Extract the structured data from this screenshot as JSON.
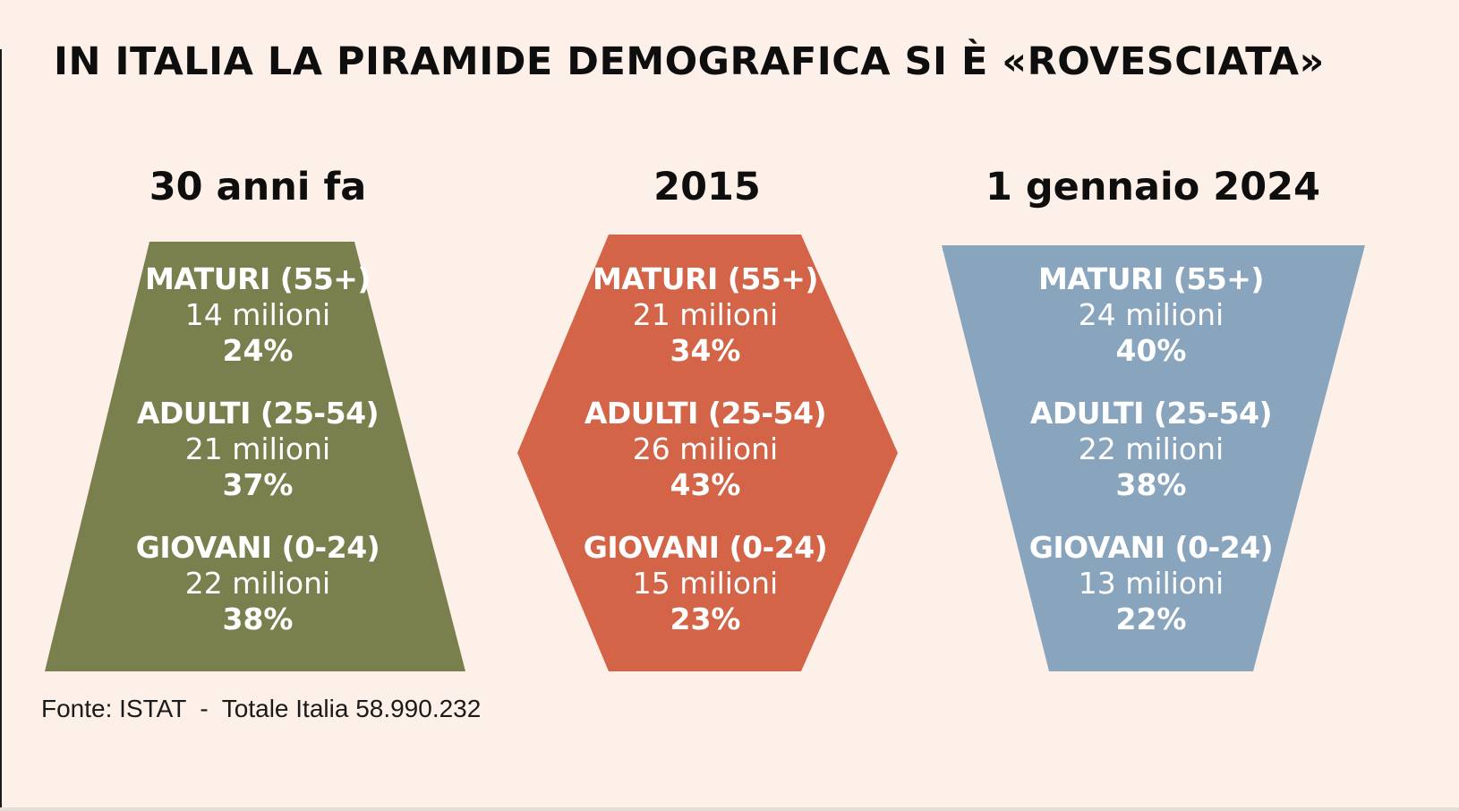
{
  "title": "IN ITALIA LA PIRAMIDE DEMOGRAFICA SI È «ROVESCIATA»",
  "source": "Fonte: ISTAT  -  Totale Italia 58.990.232",
  "colors": {
    "background": "#fdf0e8",
    "panel_1": "#7a7f4e",
    "panel_2": "#d46447",
    "panel_3": "#89a5be",
    "text_on_shape": "#ffffff"
  },
  "chart_data": {
    "type": "table",
    "panels": [
      {
        "heading": "30 anni fa",
        "shape": "trapezoid",
        "groups": [
          {
            "label": "MATURI (55+)",
            "count": "14 milioni",
            "percent": "24%"
          },
          {
            "label": "ADULTI (25-54)",
            "count": "21 milioni",
            "percent": "37%"
          },
          {
            "label": "GIOVANI (0-24)",
            "count": "22 milioni",
            "percent": "38%"
          }
        ]
      },
      {
        "heading": "2015",
        "shape": "hexagon",
        "groups": [
          {
            "label": "MATURI (55+)",
            "count": "21 milioni",
            "percent": "34%"
          },
          {
            "label": "ADULTI (25-54)",
            "count": "26 milioni",
            "percent": "43%"
          },
          {
            "label": "GIOVANI (0-24)",
            "count": "15 milioni",
            "percent": "23%"
          }
        ]
      },
      {
        "heading": "1 gennaio 2024",
        "shape": "inverted-trapezoid",
        "groups": [
          {
            "label": "MATURI (55+)",
            "count": "24 milioni",
            "percent": "40%"
          },
          {
            "label": "ADULTI (25-54)",
            "count": "22 milioni",
            "percent": "38%"
          },
          {
            "label": "GIOVANI (0-24)",
            "count": "13 milioni",
            "percent": "22%"
          }
        ]
      }
    ]
  }
}
